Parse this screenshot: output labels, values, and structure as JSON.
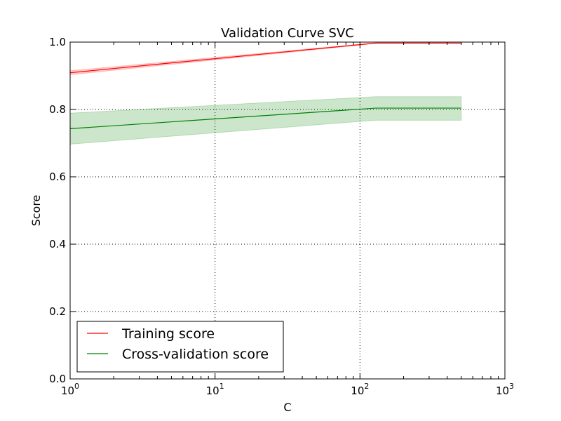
{
  "chart_data": {
    "type": "line",
    "title": "Validation Curve SVC",
    "xlabel": "C",
    "ylabel": "Score",
    "xscale": "log",
    "xlim": [
      1,
      1000
    ],
    "ylim": [
      0.0,
      1.0
    ],
    "x_ticks": [
      {
        "value": 1,
        "base": "10",
        "exp": "0"
      },
      {
        "value": 10,
        "base": "10",
        "exp": "1"
      },
      {
        "value": 100,
        "base": "10",
        "exp": "2"
      },
      {
        "value": 1000,
        "base": "10",
        "exp": "3"
      }
    ],
    "y_ticks": [
      {
        "value": 0.0,
        "label": "0.0"
      },
      {
        "value": 0.2,
        "label": "0.2"
      },
      {
        "value": 0.4,
        "label": "0.4"
      },
      {
        "value": 0.6,
        "label": "0.6"
      },
      {
        "value": 0.8,
        "label": "0.8"
      },
      {
        "value": 1.0,
        "label": "1.0"
      }
    ],
    "grid": true,
    "legend_position": "lower-left",
    "x": [
      1,
      128,
      500
    ],
    "series": [
      {
        "name": "Training score",
        "color": "#ff0000",
        "values": [
          0.909,
          0.997,
          0.997
        ],
        "lower": [
          0.903,
          0.996,
          0.996
        ],
        "upper": [
          0.915,
          0.998,
          0.998
        ]
      },
      {
        "name": "Cross-validation score",
        "color": "#008000",
        "values": [
          0.743,
          0.804,
          0.804
        ],
        "lower": [
          0.697,
          0.768,
          0.768
        ],
        "upper": [
          0.789,
          0.838,
          0.838
        ]
      }
    ]
  }
}
